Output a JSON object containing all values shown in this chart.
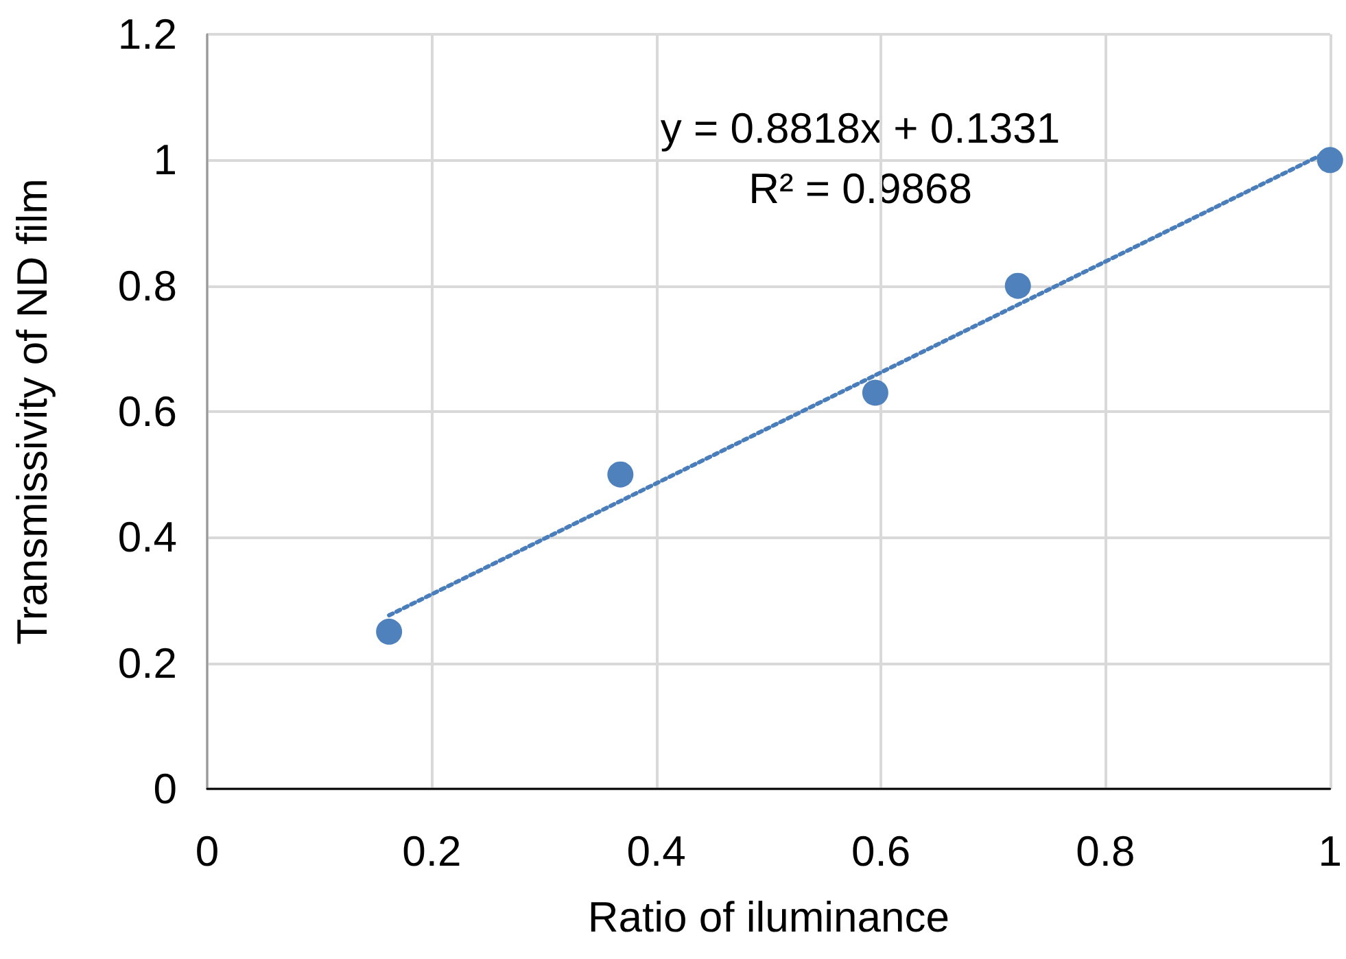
{
  "chart_data": {
    "type": "scatter",
    "xlabel": "Ratio of iluminance",
    "ylabel": "Transmissivity of ND film",
    "xlim": [
      0,
      1
    ],
    "xticks": [
      0,
      0.2,
      0.4,
      0.6,
      0.8,
      1
    ],
    "ylim": [
      0,
      1.2
    ],
    "yticks": [
      0,
      0.2,
      0.4,
      0.6,
      0.8,
      1,
      1.2
    ],
    "grid": true,
    "marker": "circle",
    "series": [
      {
        "color": "#4f81bd",
        "x": [
          0.162,
          0.368,
          0.595,
          0.722,
          1
        ],
        "values": [
          0.25,
          0.5,
          0.63,
          0.8,
          1
        ]
      },
      {
        "type": "line",
        "color": "#4a7ebb",
        "line_style": "dotted",
        "marker": "none",
        "x": [
          0.162,
          1
        ],
        "values": [
          0.276,
          1.015
        ]
      }
    ],
    "annotations": [
      "y = 0.8818x + 0.1331",
      "R² = 0.9868"
    ]
  }
}
